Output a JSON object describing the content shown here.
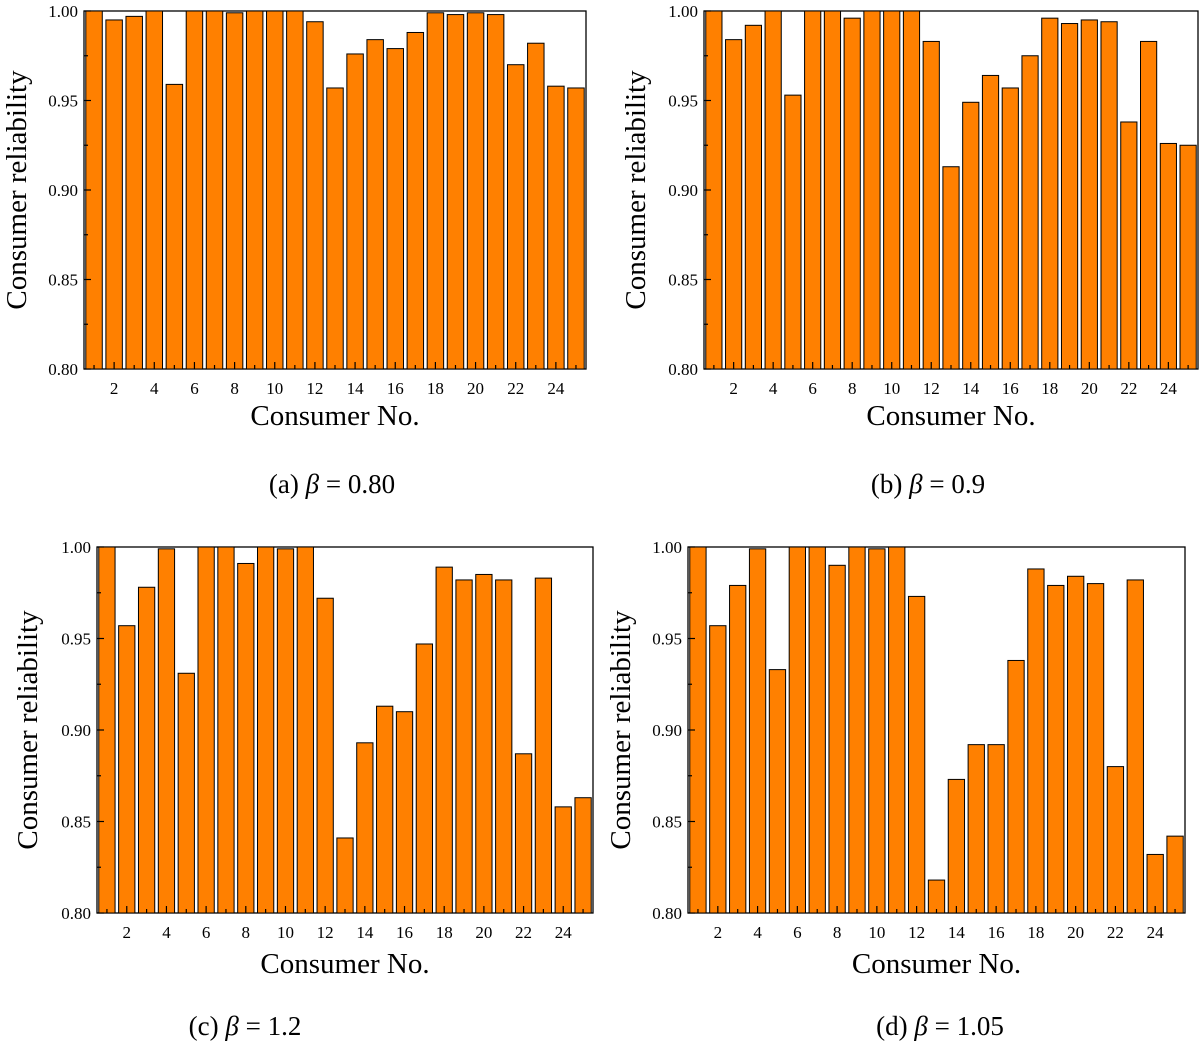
{
  "colors": {
    "bar": "#ff8000",
    "axis": "#000000",
    "background": "#ffffff"
  },
  "chart_data": [
    {
      "type": "bar",
      "panel": "a",
      "caption_prefix": "(a)",
      "caption_symbol": "β",
      "caption_value": "= 0.80",
      "xlabel": "Consumer No.",
      "ylabel": "Consumer reliability",
      "ylim": [
        0.8,
        1.0
      ],
      "yticks": [
        "0.80",
        "0.85",
        "0.90",
        "0.95",
        "1.00"
      ],
      "xticks": [
        "2",
        "4",
        "6",
        "8",
        "10",
        "12",
        "14",
        "16",
        "18",
        "20",
        "22",
        "24"
      ],
      "categories": [
        1,
        2,
        3,
        4,
        5,
        6,
        7,
        8,
        9,
        10,
        11,
        12,
        13,
        14,
        15,
        16,
        17,
        18,
        19,
        20,
        21,
        22,
        23,
        24,
        25
      ],
      "values": [
        1.0,
        0.995,
        0.997,
        1.0,
        0.959,
        1.0,
        1.0,
        0.999,
        1.0,
        1.0,
        1.0,
        0.994,
        0.957,
        0.976,
        0.984,
        0.979,
        0.988,
        0.999,
        0.998,
        0.999,
        0.998,
        0.97,
        0.982,
        0.958,
        0.957
      ]
    },
    {
      "type": "bar",
      "panel": "b",
      "caption_prefix": "(b)",
      "caption_symbol": "β",
      "caption_value": "= 0.9",
      "xlabel": "Consumer No.",
      "ylabel": "Consumer reliability",
      "ylim": [
        0.8,
        1.0
      ],
      "yticks": [
        "0.80",
        "0.85",
        "0.90",
        "0.95",
        "1.00"
      ],
      "xticks": [
        "2",
        "4",
        "6",
        "8",
        "10",
        "12",
        "14",
        "16",
        "18",
        "20",
        "22",
        "24"
      ],
      "categories": [
        1,
        2,
        3,
        4,
        5,
        6,
        7,
        8,
        9,
        10,
        11,
        12,
        13,
        14,
        15,
        16,
        17,
        18,
        19,
        20,
        21,
        22,
        23,
        24,
        25
      ],
      "values": [
        1.0,
        0.984,
        0.992,
        1.0,
        0.953,
        1.0,
        1.0,
        0.996,
        1.0,
        1.0,
        1.0,
        0.983,
        0.913,
        0.949,
        0.964,
        0.957,
        0.975,
        0.996,
        0.993,
        0.995,
        0.994,
        0.938,
        0.983,
        0.926,
        0.925
      ]
    },
    {
      "type": "bar",
      "panel": "c",
      "caption_prefix": "(c)",
      "caption_symbol": "β",
      "caption_value": "= 1.2",
      "xlabel": "Consumer No.",
      "ylabel": "Consumer reliability",
      "ylim": [
        0.8,
        1.0
      ],
      "yticks": [
        "0.80",
        "0.85",
        "0.90",
        "0.95",
        "1.00"
      ],
      "xticks": [
        "2",
        "4",
        "6",
        "8",
        "10",
        "12",
        "14",
        "16",
        "18",
        "20",
        "22",
        "24"
      ],
      "categories": [
        1,
        2,
        3,
        4,
        5,
        6,
        7,
        8,
        9,
        10,
        11,
        12,
        13,
        14,
        15,
        16,
        17,
        18,
        19,
        20,
        21,
        22,
        23,
        24,
        25
      ],
      "values": [
        1.0,
        0.957,
        0.978,
        0.999,
        0.931,
        1.0,
        1.0,
        0.991,
        1.0,
        0.999,
        1.0,
        0.972,
        0.841,
        0.893,
        0.913,
        0.91,
        0.947,
        0.989,
        0.982,
        0.985,
        0.982,
        0.887,
        0.983,
        0.858,
        0.863
      ]
    },
    {
      "type": "bar",
      "panel": "d",
      "caption_prefix": "(d)",
      "caption_symbol": "β",
      "caption_value": "= 1.05",
      "xlabel": "Consumer No.",
      "ylabel": "Consumer reliability",
      "ylim": [
        0.8,
        1.0
      ],
      "yticks": [
        "0.80",
        "0.85",
        "0.90",
        "0.95",
        "1.00"
      ],
      "xticks": [
        "2",
        "4",
        "6",
        "8",
        "10",
        "12",
        "14",
        "16",
        "18",
        "20",
        "22",
        "24"
      ],
      "categories": [
        1,
        2,
        3,
        4,
        5,
        6,
        7,
        8,
        9,
        10,
        11,
        12,
        13,
        14,
        15,
        16,
        17,
        18,
        19,
        20,
        21,
        22,
        23,
        24,
        25
      ],
      "values": [
        1.0,
        0.957,
        0.979,
        0.999,
        0.933,
        1.0,
        1.0,
        0.99,
        1.0,
        0.999,
        1.0,
        0.973,
        0.818,
        0.873,
        0.892,
        0.892,
        0.938,
        0.988,
        0.979,
        0.984,
        0.98,
        0.88,
        0.982,
        0.832,
        0.842
      ]
    }
  ]
}
